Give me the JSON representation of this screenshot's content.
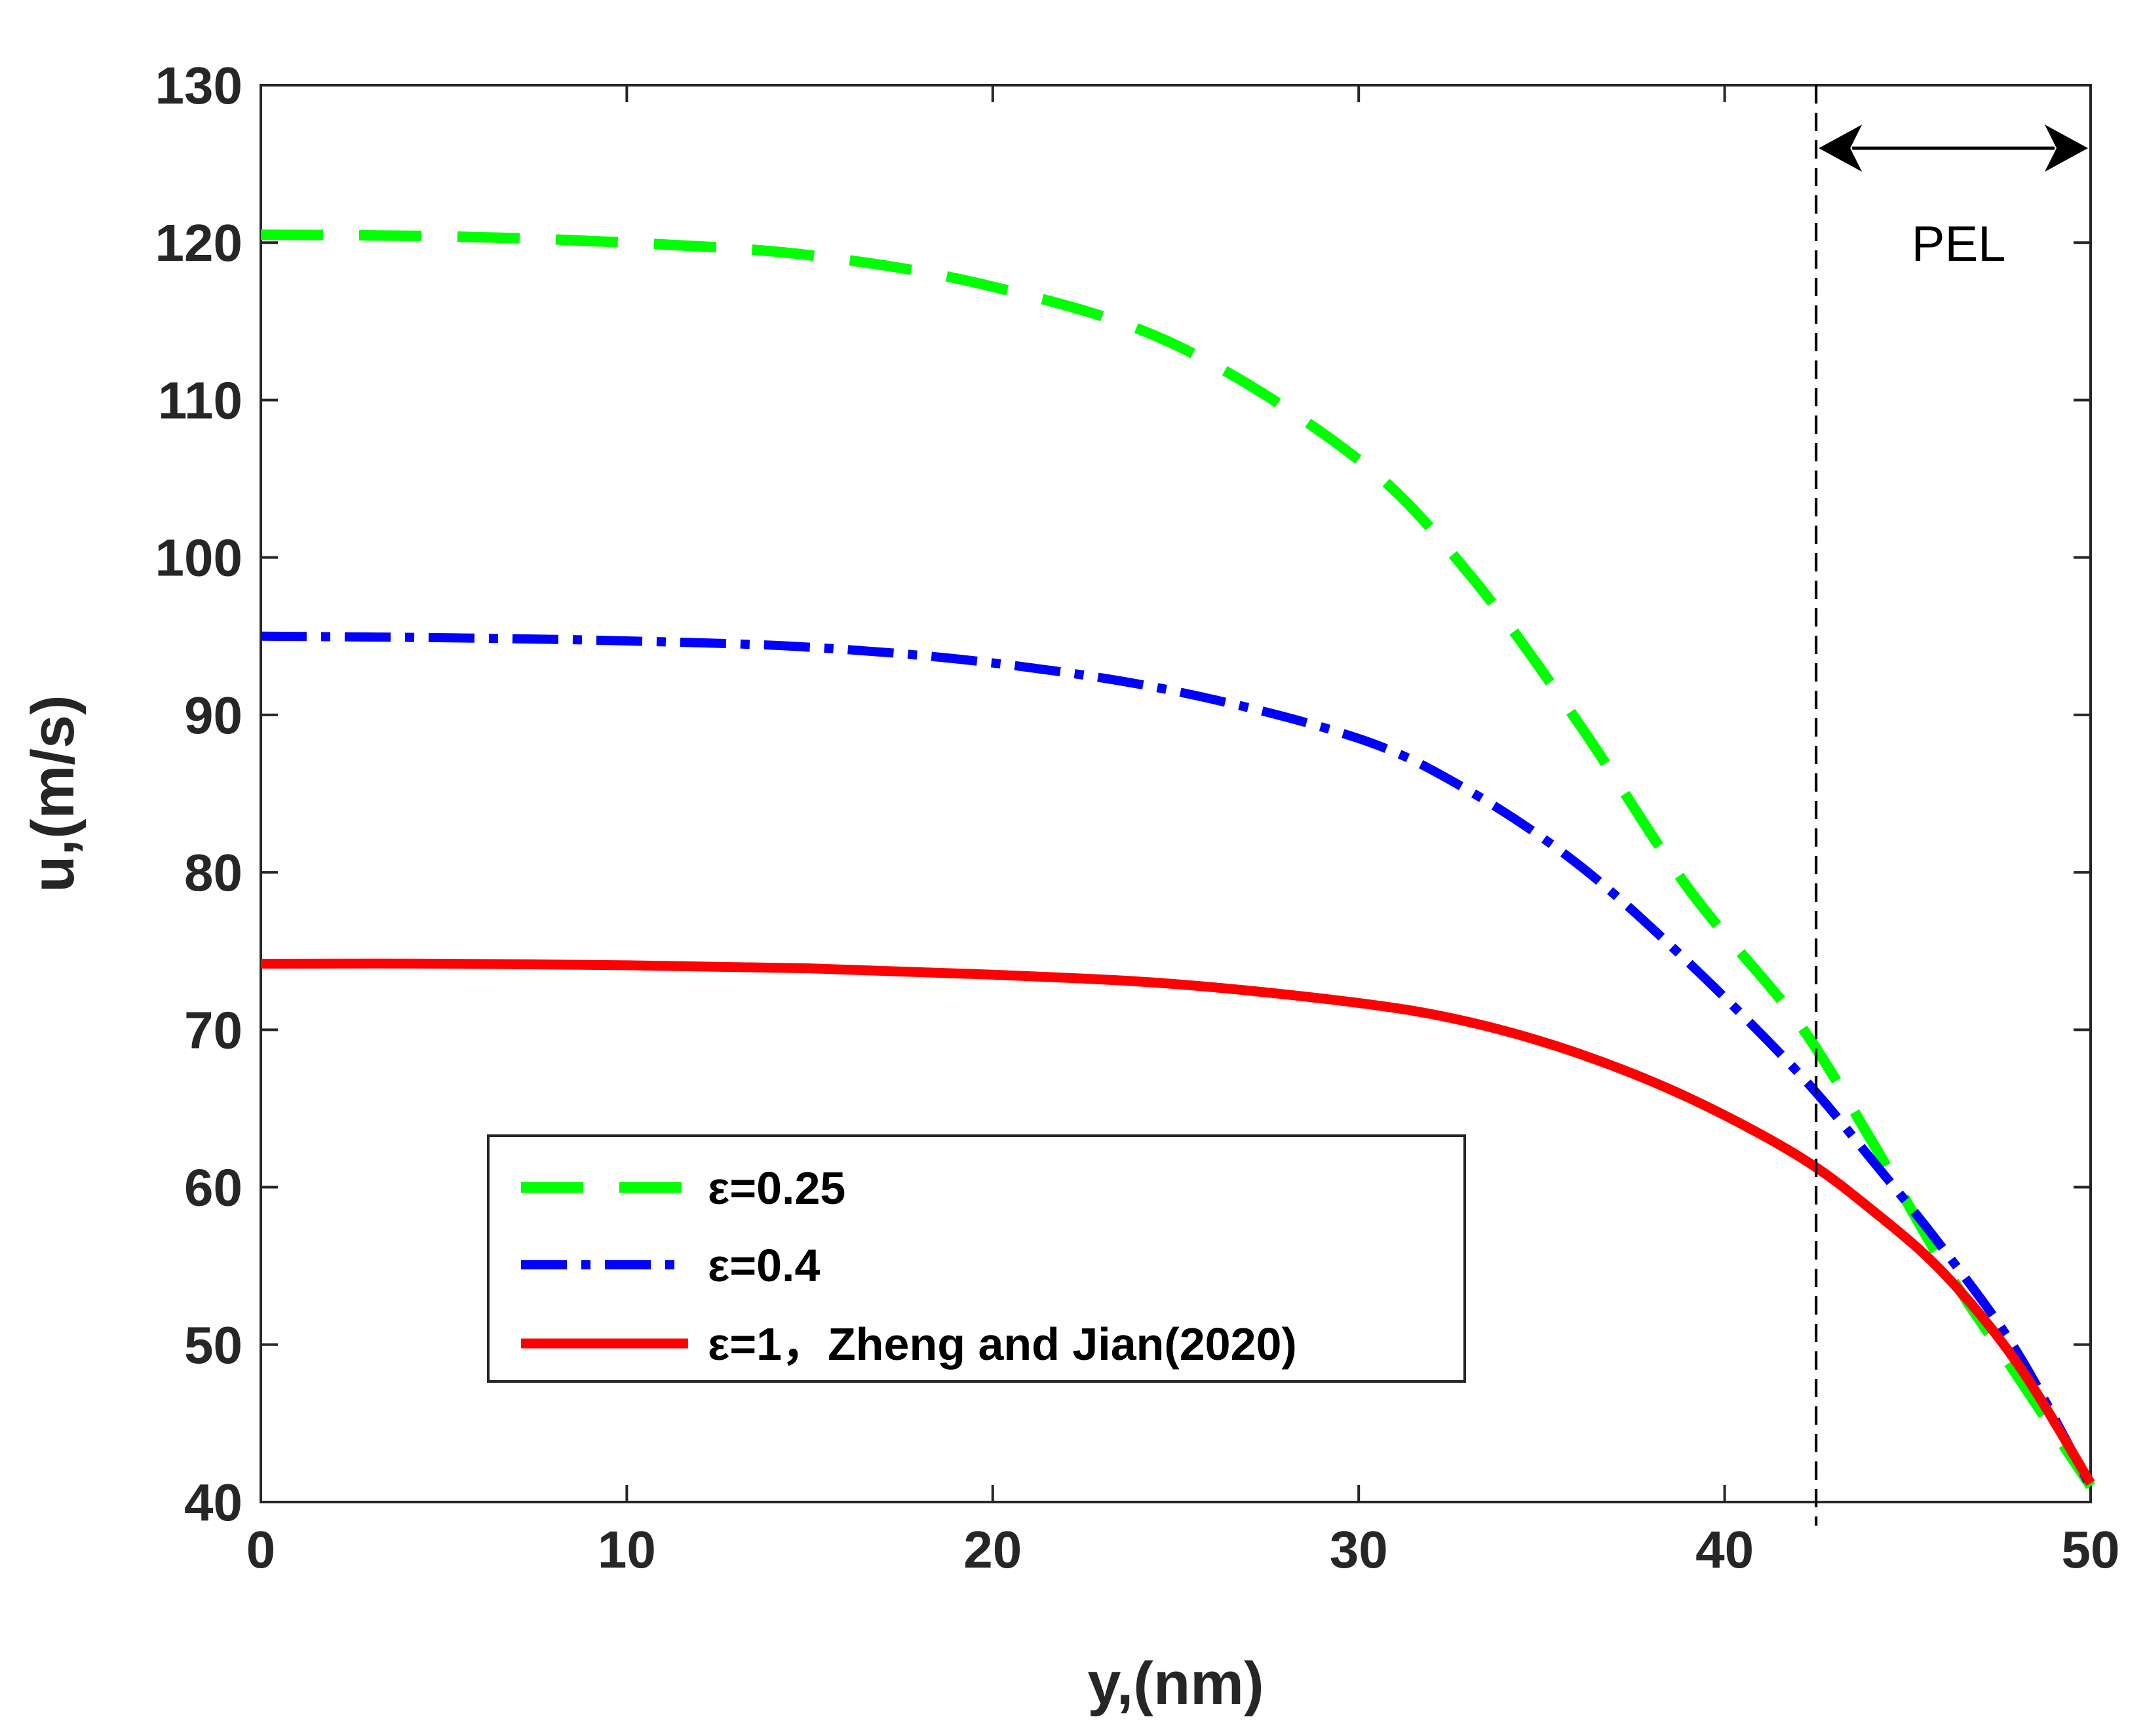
{
  "chart_data": {
    "type": "line",
    "title": "",
    "xlabel": "y,(nm)",
    "ylabel": "u,(m/s)",
    "xlim": [
      0,
      50
    ],
    "ylim": [
      40,
      130
    ],
    "grid": false,
    "x_ticks": [
      0,
      10,
      20,
      30,
      40,
      50
    ],
    "y_ticks": [
      40,
      50,
      60,
      70,
      80,
      90,
      100,
      110,
      120,
      130
    ],
    "x_tick_labels": [
      "0",
      "10",
      "20",
      "30",
      "40",
      "50"
    ],
    "y_tick_labels": [
      "40",
      "50",
      "60",
      "70",
      "80",
      "90",
      "100",
      "110",
      "120",
      "130"
    ],
    "legend_position": "lower-left",
    "x": [
      0,
      5,
      10,
      15,
      20,
      25,
      30,
      33,
      36,
      39,
      42,
      44,
      46,
      48,
      50
    ],
    "series": [
      {
        "name": "ε=0.25",
        "style": "dashed",
        "color": "#00ff00",
        "values": [
          120.5,
          120.4,
          120.0,
          119.2,
          117.2,
          113.5,
          106.2,
          99.0,
          89.5,
          79.0,
          70.5,
          63.0,
          55.0,
          48.0,
          41.0
        ]
      },
      {
        "name": "ε=0.4",
        "style": "dashdot",
        "color": "#0000ff",
        "values": [
          95.0,
          94.9,
          94.7,
          94.3,
          93.3,
          91.5,
          88.5,
          85.2,
          80.5,
          74.3,
          67.3,
          61.8,
          56.0,
          49.5,
          41.0
        ]
      },
      {
        "name": "ε=1，Zheng and Jian(2020)",
        "style": "solid",
        "color": "#ff0000",
        "values": [
          74.2,
          74.2,
          74.1,
          73.9,
          73.5,
          72.9,
          71.7,
          70.5,
          68.5,
          65.7,
          62.0,
          58.6,
          54.5,
          48.8,
          41.2
        ]
      }
    ],
    "annotations": {
      "boundary_x": 42.5,
      "pel_label": "PEL",
      "pel_arrow_from": 42.5,
      "pel_arrow_to": 50,
      "pel_arrow_y": 126
    }
  }
}
